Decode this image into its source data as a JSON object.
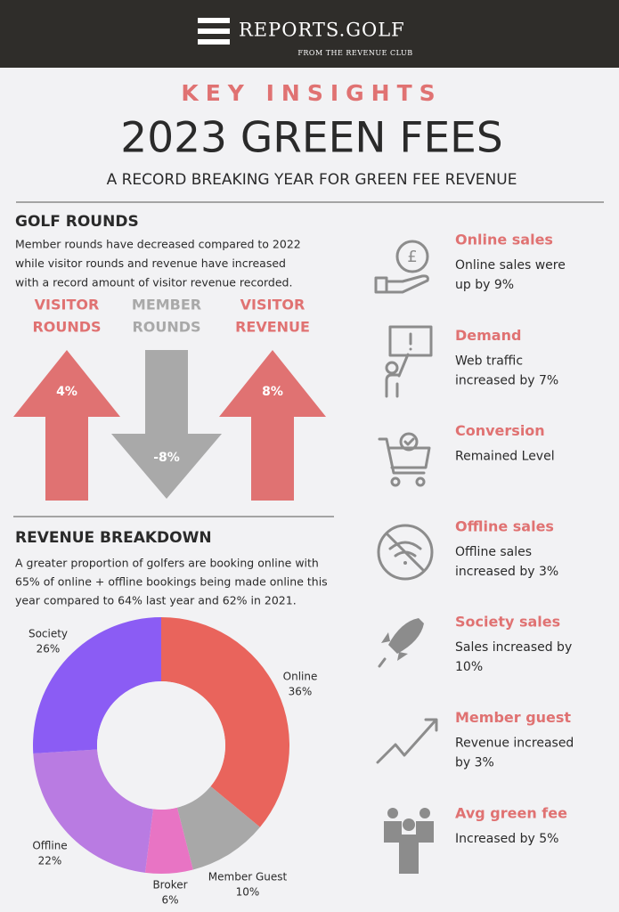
{
  "header": {
    "brand": "REPORTS.GOLF",
    "tagline": "FROM THE REVENUE CLUB"
  },
  "kicker": "KEY INSIGHTS",
  "title": "2023 GREEN FEES",
  "subtitle": "A RECORD BREAKING YEAR FOR GREEN FEE REVENUE",
  "golf_rounds": {
    "heading": "GOLF ROUNDS",
    "text_lines": [
      "Member rounds have decreased compared to 2022",
      "while visitor rounds and revenue have increased",
      "with a record amount of visitor revenue recorded."
    ],
    "arrows": [
      {
        "label_lines": [
          "VISITOR",
          "ROUNDS"
        ],
        "value": "4%"
      },
      {
        "label_lines": [
          "MEMBER",
          "ROUNDS"
        ],
        "value": "-8%"
      },
      {
        "label_lines": [
          "VISITOR",
          "REVENUE"
        ],
        "value": "8%"
      }
    ]
  },
  "revenue_breakdown": {
    "heading": "REVENUE BREAKDOWN",
    "text_lines": [
      "A greater proportion of golfers are booking online with",
      "65% of online + offline bookings being made online this",
      "year compared to 64% last year and 62% in 2021."
    ]
  },
  "chart_data": {
    "type": "donut",
    "categories": [
      "Online",
      "Member Guest",
      "Broker",
      "Offline",
      "Society"
    ],
    "values": [
      36,
      10,
      6,
      22,
      26
    ],
    "value_labels": [
      "36%",
      "10%",
      "6%",
      "22%",
      "26%"
    ],
    "colors": [
      "#e9645c",
      "#a8a8a8",
      "#e874c4",
      "#b97be2",
      "#8b5cf4"
    ]
  },
  "insights": [
    {
      "title": "Online sales",
      "lines": [
        "Online sales were",
        "up by 9%"
      ]
    },
    {
      "title": "Demand",
      "lines": [
        "Web traffic",
        "increased by 7%"
      ]
    },
    {
      "title": "Conversion",
      "lines": [
        "Remained Level"
      ]
    },
    {
      "title": "Offline sales",
      "lines": [
        "Offline sales",
        "increased by 3%"
      ]
    },
    {
      "title": "Society sales",
      "lines": [
        "Sales increased by",
        "10%"
      ]
    },
    {
      "title": "Member guest",
      "lines": [
        "Revenue increased",
        "by 3%"
      ]
    },
    {
      "title": "Avg green fee",
      "lines": [
        "Increased by 5%"
      ]
    }
  ]
}
